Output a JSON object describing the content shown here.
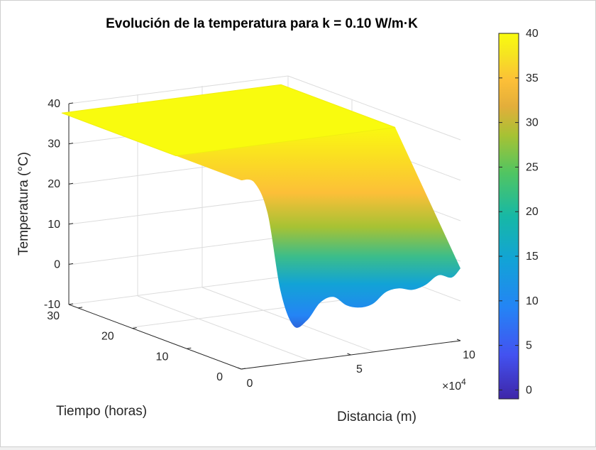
{
  "chart_data": {
    "type": "surface",
    "title": "Evolución de la temperatura para k = 0.10 W/m·K",
    "xlabel": "Distancia (m)",
    "ylabel": "Tiempo (horas)",
    "zlabel": "Temperatura (°C)",
    "x_exponent_label": "×10",
    "x_exponent_power": "4",
    "x_ticks": [
      {
        "value": 0,
        "label": "0"
      },
      {
        "value": 50000,
        "label": "5"
      },
      {
        "value": 100000,
        "label": "10"
      }
    ],
    "y_ticks": [
      {
        "value": 0,
        "label": "0"
      },
      {
        "value": 10,
        "label": "10"
      },
      {
        "value": 20,
        "label": "20"
      },
      {
        "value": 30,
        "label": "30"
      }
    ],
    "z_ticks": [
      {
        "value": -10,
        "label": "-10"
      },
      {
        "value": 0,
        "label": "0"
      },
      {
        "value": 10,
        "label": "10"
      },
      {
        "value": 20,
        "label": "20"
      },
      {
        "value": 30,
        "label": "30"
      },
      {
        "value": 40,
        "label": "40"
      }
    ],
    "xlim": [
      0,
      105000
    ],
    "ylim": [
      0,
      33
    ],
    "zlim": [
      -10,
      40
    ],
    "grid": true,
    "colormap": "parula",
    "colorbar": {
      "limits": [
        -1,
        40
      ],
      "ticks": [
        {
          "value": 0,
          "label": "0"
        },
        {
          "value": 5,
          "label": "5"
        },
        {
          "value": 10,
          "label": "10"
        },
        {
          "value": 15,
          "label": "15"
        },
        {
          "value": 20,
          "label": "20"
        },
        {
          "value": 25,
          "label": "25"
        },
        {
          "value": 30,
          "label": "30"
        },
        {
          "value": 35,
          "label": "35"
        },
        {
          "value": 40,
          "label": "40"
        }
      ]
    },
    "surface": {
      "plateau_value": 37,
      "plateau_time_range": [
        12,
        33
      ],
      "edge_profile_at_time_0": {
        "x": [
          0,
          6000,
          12000,
          18000,
          24000,
          30000,
          36000,
          42000,
          48000,
          54000,
          60000,
          66000,
          72000,
          78000,
          84000,
          90000,
          96000,
          100000
        ],
        "temperature": [
          37,
          36,
          28,
          8,
          -1,
          0,
          4,
          5,
          2.5,
          1.5,
          2,
          4.5,
          5,
          4.2,
          5,
          7,
          6,
          8
        ]
      }
    }
  }
}
